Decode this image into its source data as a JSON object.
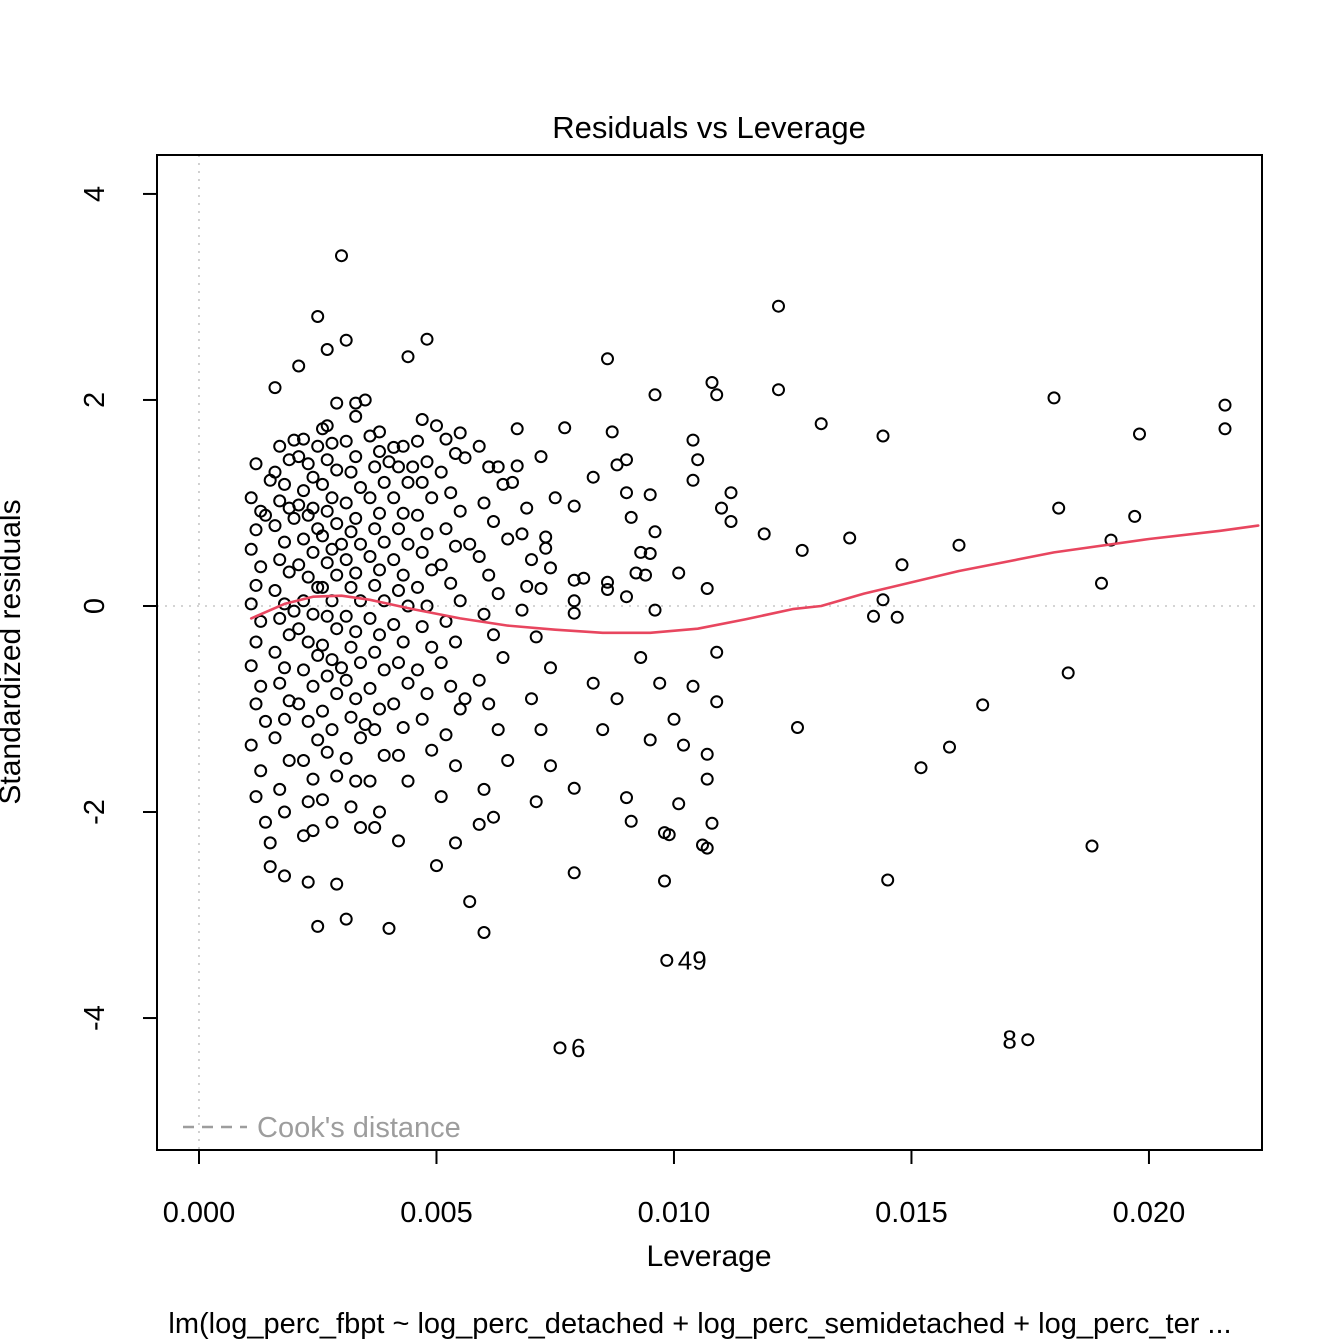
{
  "title": "Residuals vs Leverage",
  "subtitle": "lm(log_perc_fbpt ~ log_perc_detached + log_perc_semidetached + log_perc_ter ...",
  "legend": {
    "label": "Cook's distance"
  },
  "colors": {
    "smooth_line": "#e8465f",
    "points": "#000000",
    "reference_line": "#c6c6c6",
    "legend_gray": "#9d9d9d",
    "border": "#000000"
  },
  "axes": {
    "xlabel": "Leverage",
    "ylabel": "Standardized residuals",
    "xlim": [
      -0.000884,
      0.02238
    ],
    "ylim": [
      -5.281,
      4.378
    ],
    "x_ticks": {
      "values": [
        0.0,
        0.005,
        0.01,
        0.015,
        0.02
      ],
      "labels": [
        "0.000",
        "0.005",
        "0.010",
        "0.015",
        "0.020"
      ]
    },
    "y_ticks": {
      "values": [
        -4,
        -2,
        0,
        2,
        4
      ],
      "labels": [
        "-4",
        "-2",
        "0",
        "2",
        "4"
      ]
    }
  },
  "chart_data": {
    "type": "scatter",
    "title": "Residuals vs Leverage",
    "xlabel": "Leverage",
    "ylabel": "Standardized residuals",
    "grid": false,
    "reference_lines": {
      "horizontal_y": 0,
      "vertical_x": 0
    },
    "labeled_points": [
      {
        "label": "49",
        "x": 0.00985,
        "y": -3.44,
        "label_side": "right"
      },
      {
        "label": "6",
        "x": 0.0076,
        "y": -4.29,
        "label_side": "right"
      },
      {
        "label": "8",
        "x": 0.01745,
        "y": -4.21,
        "label_side": "left"
      }
    ],
    "smooth_line": [
      [
        0.0011,
        -0.12
      ],
      [
        0.0018,
        0.02
      ],
      [
        0.0024,
        0.09
      ],
      [
        0.003,
        0.1
      ],
      [
        0.0036,
        0.06
      ],
      [
        0.0045,
        -0.03
      ],
      [
        0.0055,
        -0.12
      ],
      [
        0.0065,
        -0.19
      ],
      [
        0.0075,
        -0.23
      ],
      [
        0.0085,
        -0.26
      ],
      [
        0.0095,
        -0.26
      ],
      [
        0.0105,
        -0.22
      ],
      [
        0.0115,
        -0.13
      ],
      [
        0.0125,
        -0.03
      ],
      [
        0.0131,
        0.0
      ],
      [
        0.014,
        0.12
      ],
      [
        0.016,
        0.34
      ],
      [
        0.018,
        0.52
      ],
      [
        0.02,
        0.65
      ],
      [
        0.0215,
        0.73
      ],
      [
        0.0223,
        0.78
      ]
    ],
    "points": [
      [
        0.0012,
        1.38
      ],
      [
        0.0011,
        1.05
      ],
      [
        0.0013,
        0.92
      ],
      [
        0.0012,
        0.74
      ],
      [
        0.0011,
        0.55
      ],
      [
        0.0013,
        0.38
      ],
      [
        0.0012,
        0.2
      ],
      [
        0.0011,
        0.02
      ],
      [
        0.0013,
        -0.15
      ],
      [
        0.0012,
        -0.35
      ],
      [
        0.0011,
        -0.58
      ],
      [
        0.0013,
        -0.78
      ],
      [
        0.0012,
        -0.95
      ],
      [
        0.0014,
        -1.12
      ],
      [
        0.0011,
        -1.35
      ],
      [
        0.0013,
        -1.6
      ],
      [
        0.0012,
        -1.85
      ],
      [
        0.0014,
        -2.1
      ],
      [
        0.0015,
        -2.53
      ],
      [
        0.0014,
        0.88
      ],
      [
        0.0015,
        1.22
      ],
      [
        0.0016,
        2.12
      ],
      [
        0.0017,
        1.55
      ],
      [
        0.0016,
        1.3
      ],
      [
        0.0018,
        1.18
      ],
      [
        0.0017,
        1.02
      ],
      [
        0.0019,
        0.95
      ],
      [
        0.0016,
        0.78
      ],
      [
        0.0018,
        0.62
      ],
      [
        0.0017,
        0.45
      ],
      [
        0.0019,
        0.33
      ],
      [
        0.0016,
        0.15
      ],
      [
        0.0018,
        0.02
      ],
      [
        0.0017,
        -0.12
      ],
      [
        0.0019,
        -0.28
      ],
      [
        0.0016,
        -0.45
      ],
      [
        0.0018,
        -0.6
      ],
      [
        0.0017,
        -0.75
      ],
      [
        0.0019,
        -0.92
      ],
      [
        0.0018,
        -1.1
      ],
      [
        0.0016,
        -1.28
      ],
      [
        0.0019,
        -1.5
      ],
      [
        0.0017,
        -1.78
      ],
      [
        0.0018,
        -2.0
      ],
      [
        0.0015,
        -2.3
      ],
      [
        0.0018,
        -2.62
      ],
      [
        0.0019,
        1.42
      ],
      [
        0.002,
        0.85
      ],
      [
        0.002,
        -0.05
      ],
      [
        0.0021,
        2.33
      ],
      [
        0.0025,
        2.81
      ],
      [
        0.0022,
        1.62
      ],
      [
        0.0021,
        1.45
      ],
      [
        0.0023,
        1.38
      ],
      [
        0.0024,
        1.25
      ],
      [
        0.0022,
        1.12
      ],
      [
        0.0021,
        0.98
      ],
      [
        0.0023,
        0.88
      ],
      [
        0.0025,
        0.75
      ],
      [
        0.0022,
        0.65
      ],
      [
        0.0024,
        0.52
      ],
      [
        0.0021,
        0.4
      ],
      [
        0.0023,
        0.28
      ],
      [
        0.0025,
        0.18
      ],
      [
        0.0022,
        0.05
      ],
      [
        0.0024,
        -0.08
      ],
      [
        0.0021,
        -0.22
      ],
      [
        0.0023,
        -0.35
      ],
      [
        0.0025,
        -0.48
      ],
      [
        0.0022,
        -0.62
      ],
      [
        0.0024,
        -0.78
      ],
      [
        0.0021,
        -0.95
      ],
      [
        0.0023,
        -1.12
      ],
      [
        0.0025,
        -1.3
      ],
      [
        0.0022,
        -1.5
      ],
      [
        0.0024,
        -1.68
      ],
      [
        0.0023,
        -1.9
      ],
      [
        0.0022,
        -2.23
      ],
      [
        0.0024,
        -2.18
      ],
      [
        0.0023,
        -2.68
      ],
      [
        0.0025,
        -3.11
      ],
      [
        0.0024,
        0.95
      ],
      [
        0.0025,
        1.55
      ],
      [
        0.002,
        1.61
      ],
      [
        0.003,
        3.4
      ],
      [
        0.0027,
        2.49
      ],
      [
        0.0029,
        1.97
      ],
      [
        0.0026,
        1.72
      ],
      [
        0.0028,
        1.58
      ],
      [
        0.0027,
        1.42
      ],
      [
        0.0029,
        1.32
      ],
      [
        0.0026,
        1.18
      ],
      [
        0.0028,
        1.05
      ],
      [
        0.0027,
        0.92
      ],
      [
        0.0029,
        0.8
      ],
      [
        0.0026,
        0.68
      ],
      [
        0.0028,
        0.55
      ],
      [
        0.0027,
        0.42
      ],
      [
        0.0029,
        0.3
      ],
      [
        0.0026,
        0.18
      ],
      [
        0.0028,
        0.05
      ],
      [
        0.0027,
        -0.1
      ],
      [
        0.0029,
        -0.22
      ],
      [
        0.0026,
        -0.38
      ],
      [
        0.0028,
        -0.52
      ],
      [
        0.0027,
        -0.68
      ],
      [
        0.0029,
        -0.85
      ],
      [
        0.0026,
        -1.02
      ],
      [
        0.0028,
        -1.2
      ],
      [
        0.0027,
        -1.42
      ],
      [
        0.0029,
        -1.65
      ],
      [
        0.0026,
        -1.88
      ],
      [
        0.0028,
        -2.1
      ],
      [
        0.0029,
        -2.7
      ],
      [
        0.0027,
        1.75
      ],
      [
        0.003,
        0.6
      ],
      [
        0.003,
        -0.6
      ],
      [
        0.0031,
        2.58
      ],
      [
        0.0033,
        1.97
      ],
      [
        0.0035,
        2.0
      ],
      [
        0.0033,
        1.84
      ],
      [
        0.0031,
        1.6
      ],
      [
        0.0033,
        1.45
      ],
      [
        0.0032,
        1.3
      ],
      [
        0.0034,
        1.15
      ],
      [
        0.0031,
        1.0
      ],
      [
        0.0033,
        0.85
      ],
      [
        0.0032,
        0.72
      ],
      [
        0.0034,
        0.6
      ],
      [
        0.0031,
        0.45
      ],
      [
        0.0033,
        0.32
      ],
      [
        0.0032,
        0.18
      ],
      [
        0.0034,
        0.05
      ],
      [
        0.0031,
        -0.1
      ],
      [
        0.0033,
        -0.25
      ],
      [
        0.0032,
        -0.4
      ],
      [
        0.0034,
        -0.55
      ],
      [
        0.0031,
        -0.72
      ],
      [
        0.0033,
        -0.9
      ],
      [
        0.0032,
        -1.08
      ],
      [
        0.0034,
        -1.28
      ],
      [
        0.0031,
        -1.48
      ],
      [
        0.0033,
        -1.7
      ],
      [
        0.0032,
        -1.95
      ],
      [
        0.0034,
        -2.15
      ],
      [
        0.0031,
        -3.04
      ],
      [
        0.0035,
        -1.15
      ],
      [
        0.0038,
        1.69
      ],
      [
        0.0036,
        1.65
      ],
      [
        0.0038,
        1.5
      ],
      [
        0.0037,
        1.35
      ],
      [
        0.0039,
        1.2
      ],
      [
        0.0036,
        1.05
      ],
      [
        0.0038,
        0.9
      ],
      [
        0.0037,
        0.75
      ],
      [
        0.0039,
        0.62
      ],
      [
        0.0036,
        0.48
      ],
      [
        0.0038,
        0.35
      ],
      [
        0.0037,
        0.2
      ],
      [
        0.0039,
        0.05
      ],
      [
        0.0036,
        -0.12
      ],
      [
        0.0038,
        -0.28
      ],
      [
        0.0037,
        -0.45
      ],
      [
        0.0039,
        -0.62
      ],
      [
        0.0036,
        -0.8
      ],
      [
        0.0038,
        -1.0
      ],
      [
        0.0037,
        -1.2
      ],
      [
        0.0039,
        -1.45
      ],
      [
        0.0036,
        -1.7
      ],
      [
        0.0038,
        -2.0
      ],
      [
        0.0037,
        -2.15
      ],
      [
        0.004,
        -3.13
      ],
      [
        0.004,
        1.4
      ],
      [
        0.0041,
        1.54
      ],
      [
        0.0043,
        1.55
      ],
      [
        0.0042,
        1.35
      ],
      [
        0.0044,
        1.2
      ],
      [
        0.0041,
        1.05
      ],
      [
        0.0043,
        0.9
      ],
      [
        0.0042,
        0.75
      ],
      [
        0.0044,
        0.6
      ],
      [
        0.0041,
        0.45
      ],
      [
        0.0043,
        0.3
      ],
      [
        0.0042,
        0.15
      ],
      [
        0.0044,
        0.0
      ],
      [
        0.0041,
        -0.18
      ],
      [
        0.0043,
        -0.35
      ],
      [
        0.0042,
        -0.55
      ],
      [
        0.0044,
        -0.75
      ],
      [
        0.0041,
        -0.95
      ],
      [
        0.0043,
        -1.18
      ],
      [
        0.0042,
        -1.45
      ],
      [
        0.0044,
        -1.7
      ],
      [
        0.0042,
        -2.28
      ],
      [
        0.0044,
        2.42
      ],
      [
        0.0048,
        2.59
      ],
      [
        0.0047,
        1.81
      ],
      [
        0.0046,
        1.6
      ],
      [
        0.0048,
        1.4
      ],
      [
        0.0045,
        1.35
      ],
      [
        0.0047,
        1.2
      ],
      [
        0.0049,
        1.05
      ],
      [
        0.0046,
        0.88
      ],
      [
        0.0048,
        0.7
      ],
      [
        0.0047,
        0.52
      ],
      [
        0.0049,
        0.35
      ],
      [
        0.0046,
        0.18
      ],
      [
        0.0048,
        0.0
      ],
      [
        0.0047,
        -0.2
      ],
      [
        0.0049,
        -0.4
      ],
      [
        0.0046,
        -0.62
      ],
      [
        0.0048,
        -0.85
      ],
      [
        0.0047,
        -1.1
      ],
      [
        0.0049,
        -1.4
      ],
      [
        0.005,
        -2.52
      ],
      [
        0.005,
        1.75
      ],
      [
        0.0052,
        1.62
      ],
      [
        0.0055,
        1.68
      ],
      [
        0.0054,
        1.48
      ],
      [
        0.0051,
        1.3
      ],
      [
        0.0053,
        1.1
      ],
      [
        0.0055,
        0.92
      ],
      [
        0.0052,
        0.75
      ],
      [
        0.0054,
        0.58
      ],
      [
        0.0051,
        0.4
      ],
      [
        0.0053,
        0.22
      ],
      [
        0.0055,
        0.05
      ],
      [
        0.0052,
        -0.15
      ],
      [
        0.0054,
        -0.35
      ],
      [
        0.0051,
        -0.55
      ],
      [
        0.0053,
        -0.78
      ],
      [
        0.0055,
        -1.0
      ],
      [
        0.0052,
        -1.25
      ],
      [
        0.0054,
        -1.55
      ],
      [
        0.0051,
        -1.85
      ],
      [
        0.0054,
        -2.3
      ],
      [
        0.0057,
        -2.87
      ],
      [
        0.0056,
        1.44
      ],
      [
        0.0057,
        0.6
      ],
      [
        0.0056,
        -0.9
      ],
      [
        0.0059,
        -2.12
      ],
      [
        0.006,
        -3.17
      ],
      [
        0.0059,
        1.55
      ],
      [
        0.0061,
        1.35
      ],
      [
        0.0063,
        1.35
      ],
      [
        0.0064,
        1.18
      ],
      [
        0.006,
        1.0
      ],
      [
        0.0062,
        0.82
      ],
      [
        0.0065,
        0.65
      ],
      [
        0.0059,
        0.48
      ],
      [
        0.0061,
        0.3
      ],
      [
        0.0063,
        0.12
      ],
      [
        0.006,
        -0.08
      ],
      [
        0.0062,
        -0.28
      ],
      [
        0.0064,
        -0.5
      ],
      [
        0.0059,
        -0.72
      ],
      [
        0.0061,
        -0.95
      ],
      [
        0.0063,
        -1.2
      ],
      [
        0.0065,
        -1.5
      ],
      [
        0.006,
        -1.78
      ],
      [
        0.0062,
        -2.05
      ],
      [
        0.0067,
        1.72
      ],
      [
        0.0067,
        1.36
      ],
      [
        0.0066,
        1.2
      ],
      [
        0.0069,
        0.95
      ],
      [
        0.0068,
        0.7
      ],
      [
        0.007,
        0.45
      ],
      [
        0.0069,
        0.19
      ],
      [
        0.0072,
        1.45
      ],
      [
        0.0073,
        0.67
      ],
      [
        0.0073,
        0.56
      ],
      [
        0.0074,
        0.37
      ],
      [
        0.0072,
        0.17
      ],
      [
        0.0068,
        -0.04
      ],
      [
        0.0071,
        -0.3
      ],
      [
        0.0074,
        -0.6
      ],
      [
        0.007,
        -0.9
      ],
      [
        0.0072,
        -1.2
      ],
      [
        0.0074,
        -1.55
      ],
      [
        0.0071,
        -1.9
      ],
      [
        0.0077,
        1.73
      ],
      [
        0.0075,
        1.05
      ],
      [
        0.0079,
        0.97
      ],
      [
        0.0079,
        0.25
      ],
      [
        0.0079,
        0.05
      ],
      [
        0.0079,
        -0.07
      ],
      [
        0.0081,
        0.27
      ],
      [
        0.0083,
        1.25
      ],
      [
        0.0086,
        2.4
      ],
      [
        0.0086,
        0.23
      ],
      [
        0.0086,
        0.16
      ],
      [
        0.0087,
        1.69
      ],
      [
        0.0088,
        1.37
      ],
      [
        0.009,
        1.42
      ],
      [
        0.009,
        1.1
      ],
      [
        0.009,
        0.09
      ],
      [
        0.0091,
        0.86
      ],
      [
        0.0092,
        0.32
      ],
      [
        0.0093,
        0.52
      ],
      [
        0.0094,
        0.3
      ],
      [
        0.0095,
        0.51
      ],
      [
        0.0095,
        1.08
      ],
      [
        0.0096,
        0.72
      ],
      [
        0.0096,
        2.05
      ],
      [
        0.0096,
        -0.04
      ],
      [
        0.0079,
        -1.77
      ],
      [
        0.0079,
        -2.59
      ],
      [
        0.009,
        -1.86
      ],
      [
        0.0091,
        -2.09
      ],
      [
        0.0099,
        -2.22
      ],
      [
        0.0098,
        -2.2
      ],
      [
        0.0101,
        -1.92
      ],
      [
        0.0108,
        -2.11
      ],
      [
        0.0106,
        -2.32
      ],
      [
        0.0098,
        -2.67
      ],
      [
        0.0093,
        -0.5
      ],
      [
        0.0097,
        -0.75
      ],
      [
        0.01,
        -1.1
      ],
      [
        0.0102,
        -1.35
      ],
      [
        0.0095,
        -1.3
      ],
      [
        0.0088,
        -0.9
      ],
      [
        0.0085,
        -1.2
      ],
      [
        0.0083,
        -0.75
      ],
      [
        0.0104,
        1.61
      ],
      [
        0.0104,
        1.22
      ],
      [
        0.0108,
        2.17
      ],
      [
        0.0101,
        0.32
      ],
      [
        0.0107,
        0.17
      ],
      [
        0.0104,
        -0.78
      ],
      [
        0.011,
        0.95
      ],
      [
        0.0109,
        -0.45
      ],
      [
        0.0105,
        1.42
      ],
      [
        0.0109,
        2.05
      ],
      [
        0.0122,
        2.91
      ],
      [
        0.0122,
        2.1
      ],
      [
        0.0131,
        1.77
      ],
      [
        0.0144,
        1.65
      ],
      [
        0.018,
        2.02
      ],
      [
        0.0198,
        1.67
      ],
      [
        0.0216,
        1.95
      ],
      [
        0.0216,
        1.72
      ],
      [
        0.0112,
        1.1
      ],
      [
        0.0112,
        0.82
      ],
      [
        0.0119,
        0.7
      ],
      [
        0.0127,
        0.54
      ],
      [
        0.0137,
        0.66
      ],
      [
        0.0148,
        0.4
      ],
      [
        0.016,
        0.59
      ],
      [
        0.0144,
        0.06
      ],
      [
        0.0142,
        -0.1
      ],
      [
        0.0147,
        -0.11
      ],
      [
        0.0181,
        0.95
      ],
      [
        0.019,
        0.22
      ],
      [
        0.0192,
        0.64
      ],
      [
        0.0197,
        0.87
      ],
      [
        0.0183,
        -0.65
      ],
      [
        0.0165,
        -0.96
      ],
      [
        0.0126,
        -1.18
      ],
      [
        0.0158,
        -1.37
      ],
      [
        0.0152,
        -1.57
      ],
      [
        0.0109,
        -0.93
      ],
      [
        0.0107,
        -1.44
      ],
      [
        0.0107,
        -1.68
      ],
      [
        0.0107,
        -2.35
      ],
      [
        0.0188,
        -2.33
      ],
      [
        0.0145,
        -2.66
      ]
    ]
  }
}
